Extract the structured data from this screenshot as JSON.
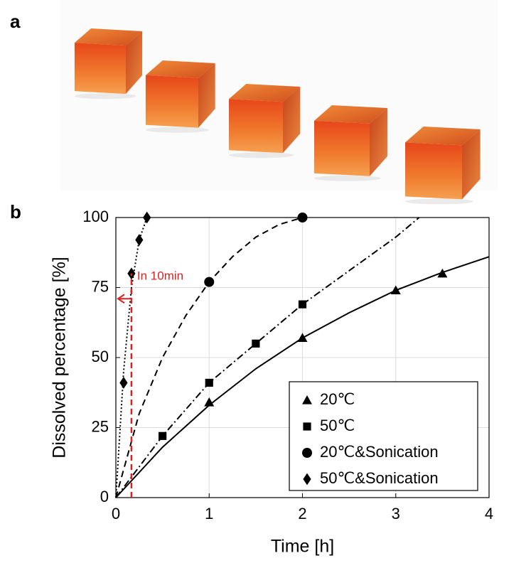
{
  "figure": {
    "panel_labels": [
      "a",
      "b"
    ]
  },
  "chart_data": {
    "type": "scatter",
    "xlabel": "Time [h]",
    "ylabel": "Dissolved percentage [%]",
    "xlim": [
      0,
      4
    ],
    "xticks": [
      0,
      1,
      2,
      3,
      4
    ],
    "ylim": [
      0,
      100
    ],
    "yticks": [
      0,
      25,
      50,
      75,
      100
    ],
    "grid": true,
    "legend": "lower right",
    "series": [
      {
        "name": "20℃",
        "color": "#000000",
        "marker": "triangle",
        "x": [
          1,
          2,
          3,
          3.5
        ],
        "values": [
          34,
          57,
          74,
          80
        ],
        "fit": {
          "dash": "solid",
          "x": [
            0,
            0.5,
            1,
            1.5,
            2,
            2.5,
            3,
            3.5,
            4
          ],
          "values": [
            0,
            18,
            33,
            46,
            57,
            66,
            74,
            80.4,
            86
          ]
        }
      },
      {
        "name": "50℃",
        "color": "#000000",
        "marker": "square",
        "x": [
          0.5,
          1,
          1.5,
          2
        ],
        "values": [
          22,
          41,
          55,
          69
        ],
        "fit": {
          "dash": "dashdot",
          "x": [
            0,
            0.5,
            1,
            1.5,
            2,
            2.5,
            3,
            3.25
          ],
          "values": [
            0,
            22,
            41,
            55,
            69,
            81,
            93,
            100
          ]
        }
      },
      {
        "name": "20℃&Sonication",
        "color": "#000000",
        "marker": "circle",
        "x": [
          1,
          2
        ],
        "values": [
          77,
          100
        ],
        "fit": {
          "dash": "dashed",
          "x": [
            0,
            0.25,
            0.5,
            0.75,
            1,
            1.25,
            1.5,
            1.75,
            2
          ],
          "values": [
            0,
            30,
            50,
            65,
            77,
            86,
            93,
            97.5,
            100
          ]
        }
      },
      {
        "name": "50℃&Sonication",
        "color": "#000000",
        "marker": "diamond",
        "x": [
          0.083,
          0.167,
          0.25,
          0.333
        ],
        "values": [
          41,
          80,
          92,
          100
        ],
        "fit": {
          "dash": "dotted",
          "x": [
            0,
            0.083,
            0.167,
            0.25,
            0.333
          ],
          "values": [
            0,
            45,
            75,
            92,
            100
          ]
        }
      }
    ],
    "annotation": {
      "text": "In 10min",
      "x": 0.167,
      "y": 71,
      "color": "#e02020"
    }
  }
}
